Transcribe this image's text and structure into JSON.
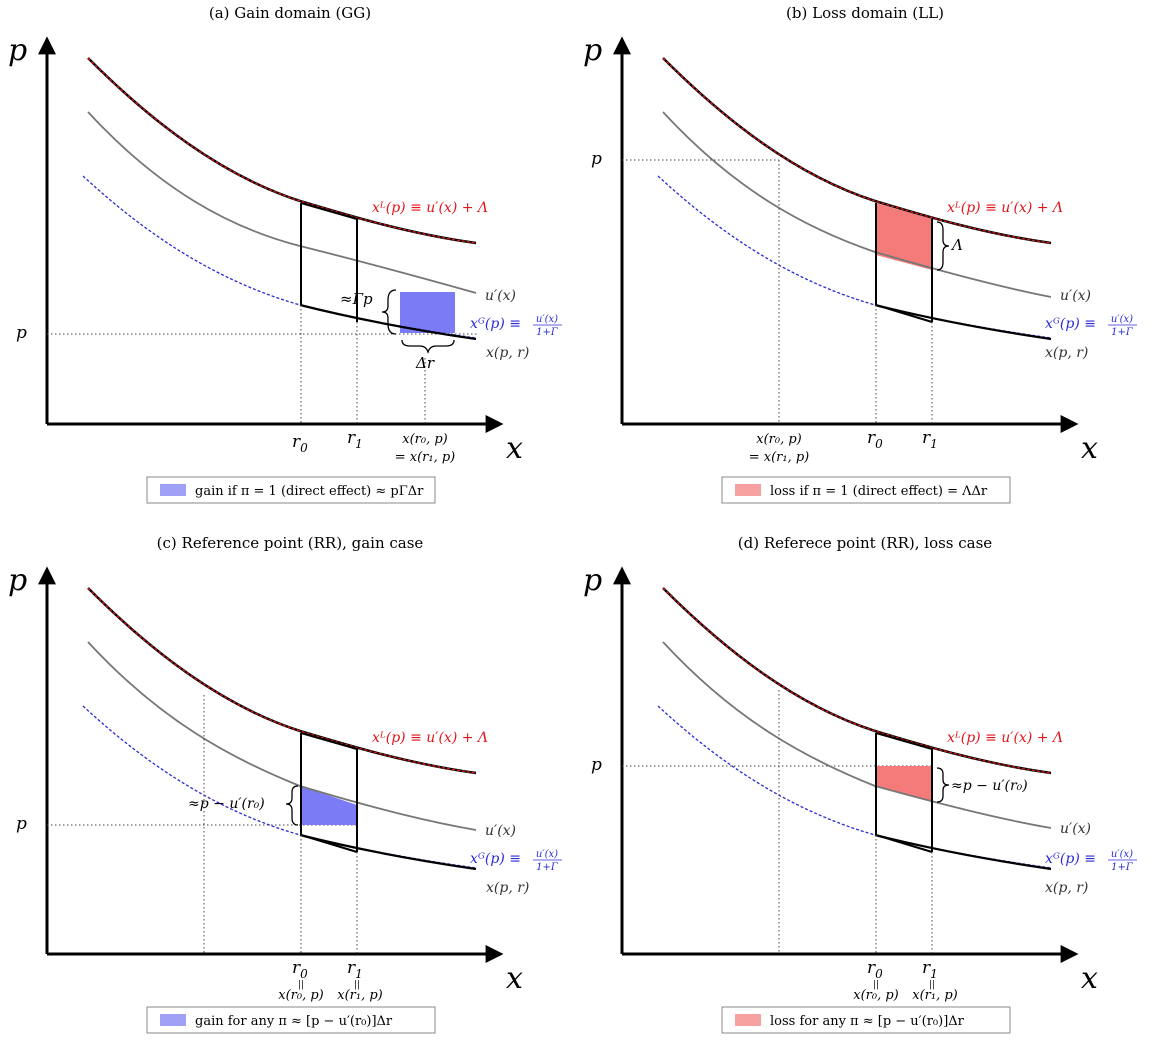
{
  "colors": {
    "gain_fill": "#7b7bf5",
    "gain_fill_light": "#a0a0f7",
    "loss_fill": "#f57b7b",
    "loss_fill_light": "#f7a0a0",
    "red": "#e0161b",
    "blue": "#2b2bd6",
    "gray": "#777777"
  },
  "panels": [
    {
      "title": "(a) Gain domain (GG)",
      "y_axis": "p",
      "x_axis": "x",
      "p_label": "p",
      "xL_label": "xᴸ(p) ≡ u′(x) + Λ",
      "u_label": "u′(x)",
      "xG_label_left": "xᴳ(p) ≡",
      "xG_frac_num": "u′(x)",
      "xG_frac_den": "1+Γ",
      "xpr_label": "x(p, r)",
      "r0": "r",
      "r0_sub": "0",
      "r1": "r",
      "r1_sub": "1",
      "x_note_1": "x(r₀, p)",
      "x_note_2": "= x(r₁, p)",
      "brace_label": "≈Γp",
      "delta_label": "Δr",
      "legend": "gain if π = 1 (direct effect) ≈ pΓΔr"
    },
    {
      "title": "(b) Loss domain (LL)",
      "y_axis": "p",
      "x_axis": "x",
      "p_label": "p",
      "xL_label": "xᴸ(p) ≡ u′(x) + Λ",
      "u_label": "u′(x)",
      "xG_label_left": "xᴳ(p) ≡",
      "xG_frac_num": "u′(x)",
      "xG_frac_den": "1+Γ",
      "xpr_label": "x(p, r)",
      "r0": "r",
      "r0_sub": "0",
      "r1": "r",
      "r1_sub": "1",
      "x_note_1": "x(r₀, p)",
      "x_note_2": "= x(r₁, p)",
      "brace_label": "Λ",
      "legend": "loss if π = 1 (direct effect) = ΛΔr"
    },
    {
      "title": "(c) Reference point (RR), gain case",
      "y_axis": "p",
      "x_axis": "x",
      "p_label": "p",
      "xL_label": "xᴸ(p) ≡ u′(x) + Λ",
      "u_label": "u′(x)",
      "xG_label_left": "xᴳ(p) ≡",
      "xG_frac_num": "u′(x)",
      "xG_frac_den": "1+Γ",
      "xpr_label": "x(p, r)",
      "r0": "r",
      "r0_sub": "0",
      "r1": "r",
      "r1_sub": "1",
      "eq_mark": "||",
      "x_note_r0": "x(r₀, p)",
      "x_note_r1": "x(r₁, p)",
      "brace_label": "≈p − u′(r₀)",
      "legend": "gain for any π ≈ [p − u′(r₀)]Δr"
    },
    {
      "title": "(d) Referece point (RR), loss case",
      "y_axis": "p",
      "x_axis": "x",
      "p_label": "p",
      "xL_label": "xᴸ(p) ≡ u′(x) + Λ",
      "u_label": "u′(x)",
      "xG_label_left": "xᴳ(p) ≡",
      "xG_frac_num": "u′(x)",
      "xG_frac_den": "1+Γ",
      "xpr_label": "x(p, r)",
      "r0": "r",
      "r0_sub": "0",
      "r1": "r",
      "r1_sub": "1",
      "eq_mark": "||",
      "x_note_r0": "x(r₀, p)",
      "x_note_r1": "x(r₁, p)",
      "brace_label": "≈p − u′(r₀)",
      "legend": "loss for any π ≈ [p − u′(r₀)]Δr"
    }
  ]
}
